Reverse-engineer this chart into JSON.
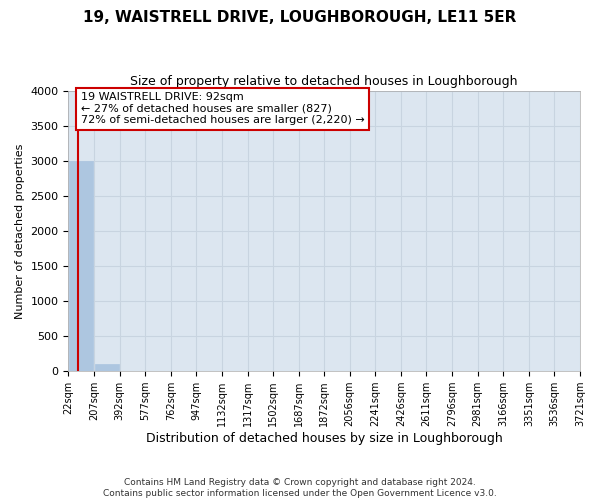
{
  "title": "19, WAISTRELL DRIVE, LOUGHBOROUGH, LE11 5ER",
  "subtitle": "Size of property relative to detached houses in Loughborough",
  "xlabel": "Distribution of detached houses by size in Loughborough",
  "ylabel": "Number of detached properties",
  "bar_edges": [
    22,
    207,
    392,
    577,
    762,
    947,
    1132,
    1317,
    1502,
    1687,
    1872,
    2056,
    2241,
    2426,
    2611,
    2796,
    2981,
    3166,
    3351,
    3536,
    3721
  ],
  "bar_heights": [
    3000,
    100,
    5,
    2,
    1,
    1,
    1,
    0,
    0,
    0,
    0,
    0,
    0,
    0,
    0,
    0,
    0,
    0,
    0,
    0
  ],
  "bar_color": "#adc6e0",
  "bar_edgecolor": "#adc6e0",
  "ylim": [
    0,
    4000
  ],
  "yticks": [
    0,
    500,
    1000,
    1500,
    2000,
    2500,
    3000,
    3500,
    4000
  ],
  "property_size": 92,
  "annotation_title": "19 WAISTRELL DRIVE: 92sqm",
  "annotation_line1": "← 27% of detached houses are smaller (827)",
  "annotation_line2": "72% of semi-detached houses are larger (2,220) →",
  "annotation_box_color": "#cc0000",
  "vline_color": "#cc0000",
  "grid_color": "#c8d4e0",
  "bg_color": "#dce6f0",
  "footer_line1": "Contains HM Land Registry data © Crown copyright and database right 2024.",
  "footer_line2": "Contains public sector information licensed under the Open Government Licence v3.0.",
  "tick_labels": [
    "22sqm",
    "207sqm",
    "392sqm",
    "577sqm",
    "762sqm",
    "947sqm",
    "1132sqm",
    "1317sqm",
    "1502sqm",
    "1687sqm",
    "1872sqm",
    "2056sqm",
    "2241sqm",
    "2426sqm",
    "2611sqm",
    "2796sqm",
    "2981sqm",
    "3166sqm",
    "3351sqm",
    "3536sqm",
    "3721sqm"
  ]
}
